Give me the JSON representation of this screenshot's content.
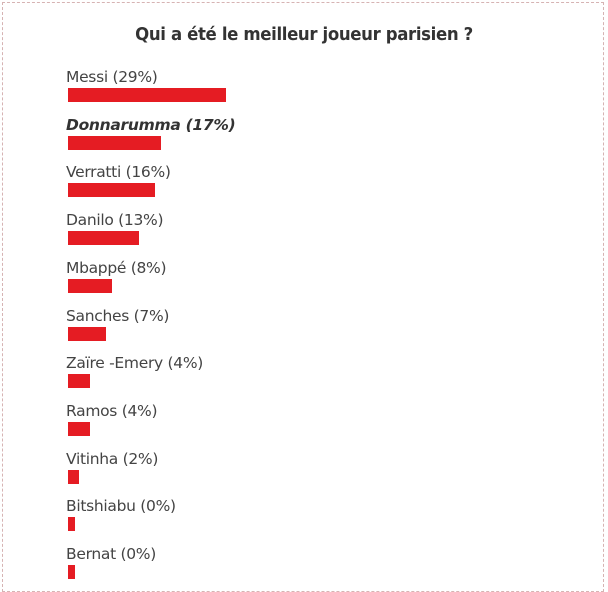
{
  "poll": {
    "question": "Qui a été le meilleur joueur parisien ?",
    "bar_color": "#e51c23",
    "options": [
      {
        "label": "Messi (29%)",
        "percent": 29,
        "selected": false
      },
      {
        "label": "Donnarumma (17%)",
        "percent": 17,
        "selected": true
      },
      {
        "label": "Verratti (16%)",
        "percent": 16,
        "selected": false
      },
      {
        "label": "Danilo (13%)",
        "percent": 13,
        "selected": false
      },
      {
        "label": "Mbappé (8%)",
        "percent": 8,
        "selected": false
      },
      {
        "label": "Sanches (7%)",
        "percent": 7,
        "selected": false
      },
      {
        "label": "Zaïre -Emery (4%)",
        "percent": 4,
        "selected": false
      },
      {
        "label": "Ramos (4%)",
        "percent": 4,
        "selected": false
      },
      {
        "label": "Vitinha (2%)",
        "percent": 2,
        "selected": false
      },
      {
        "label": "Bitshiabu (0%)",
        "percent": 0,
        "selected": false
      },
      {
        "label": "Bernat (0%)",
        "percent": 0,
        "selected": false
      }
    ]
  }
}
